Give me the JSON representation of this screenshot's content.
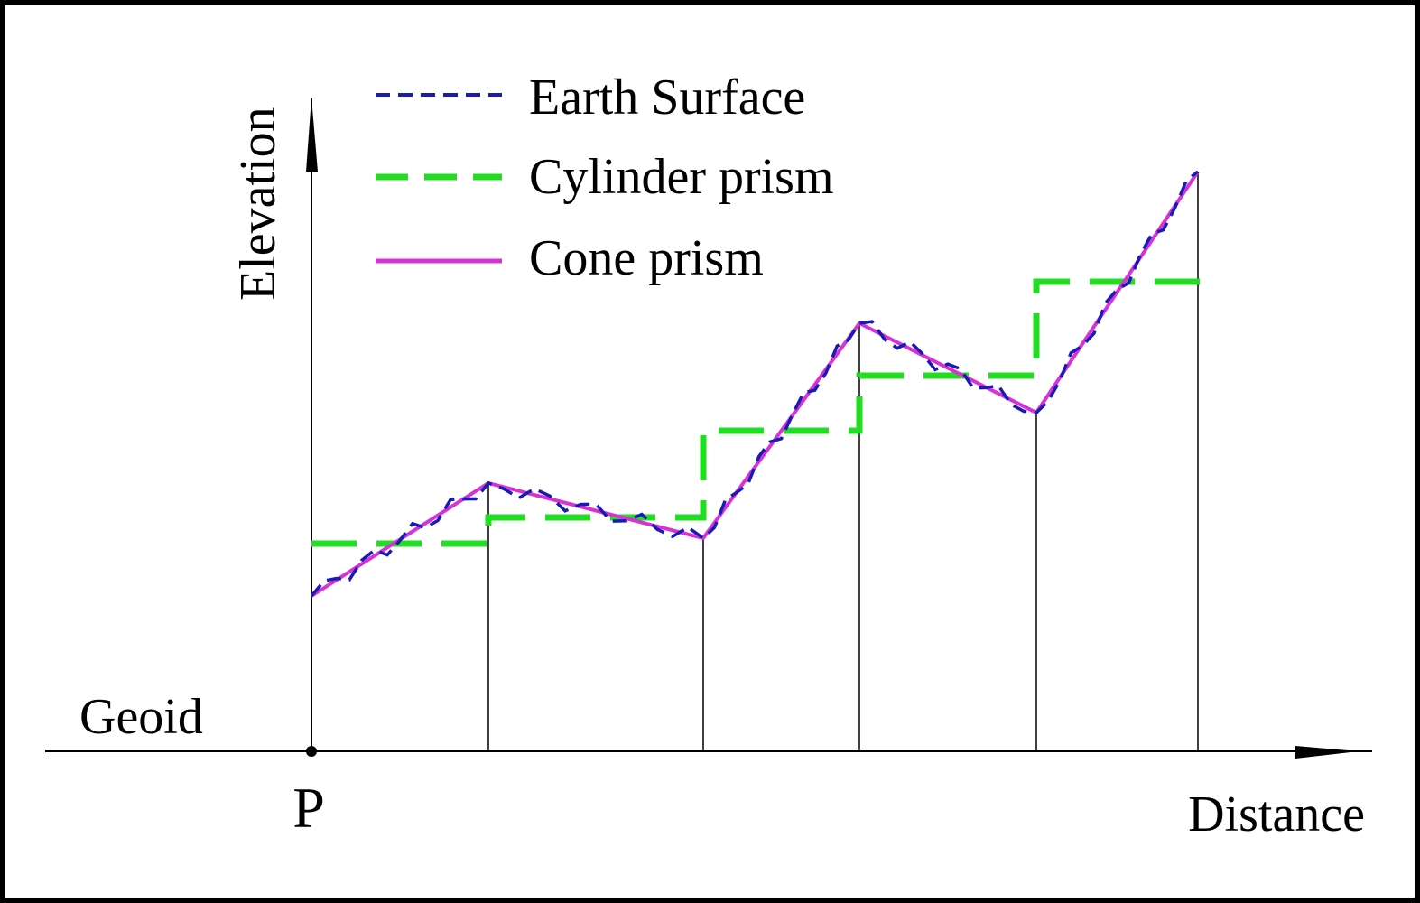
{
  "labels": {
    "y_axis": "Elevation",
    "x_axis": "Distance",
    "baseline": "Geoid",
    "origin": "P"
  },
  "legend": [
    {
      "key": "earth",
      "label": "Earth Surface",
      "color": "#1a1ab4",
      "style": "short-dash"
    },
    {
      "key": "cylinder",
      "label": "Cylinder prism",
      "color": "#22dd22",
      "style": "long-dash"
    },
    {
      "key": "cone",
      "label": "Cone prism",
      "color": "#d633d6",
      "style": "solid"
    }
  ],
  "colors": {
    "axes": "#000000",
    "earth": "#1a1ab4",
    "cylinder": "#22dd22",
    "cone": "#d633d6"
  }
}
